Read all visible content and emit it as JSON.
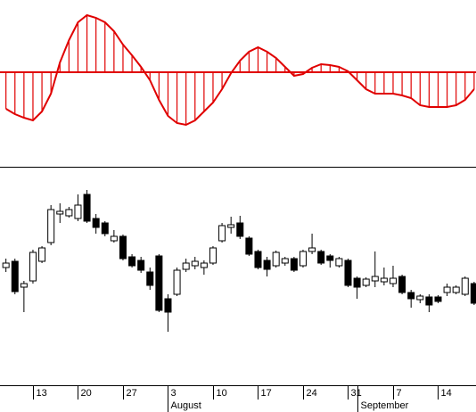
{
  "chart_data": [
    {
      "type": "oscillator",
      "color": "#e00000",
      "x": [
        -3,
        -2,
        -1,
        0,
        1,
        2,
        3,
        4,
        5,
        6,
        7,
        8,
        9,
        10,
        11,
        12,
        13,
        14,
        15,
        16,
        17,
        18,
        19,
        20,
        21,
        22,
        23,
        24,
        25,
        26,
        27,
        28,
        29,
        30,
        31,
        32,
        33,
        34,
        35,
        36,
        37,
        38,
        39,
        40,
        41,
        42,
        43,
        44,
        45,
        46,
        47,
        48,
        49
      ],
      "values": [
        -41,
        -47,
        -51,
        -54,
        -44,
        -24,
        11,
        36,
        56,
        64,
        61,
        56,
        46,
        31,
        19,
        6,
        -9,
        -31,
        -49,
        -57,
        -59,
        -54,
        -44,
        -34,
        -19,
        -1,
        13,
        23,
        28,
        23,
        16,
        6,
        -4,
        -2,
        5,
        9,
        8,
        6,
        1,
        -9,
        -19,
        -24,
        -24,
        -24,
        -26,
        -29,
        -37,
        -39,
        -39,
        -39,
        -37,
        -31,
        -19
      ],
      "xlim": [
        -3.66,
        49.21
      ],
      "ylim": [
        -106,
        81
      ]
    },
    {
      "type": "candlestick",
      "x": [
        -3,
        -2,
        -1,
        0,
        1,
        2,
        3,
        4,
        5,
        6,
        7,
        8,
        9,
        10,
        11,
        12,
        13,
        14,
        15,
        16,
        17,
        18,
        19,
        20,
        21,
        22,
        23,
        24,
        25,
        26,
        27,
        28,
        29,
        30,
        31,
        32,
        33,
        34,
        35,
        36,
        37,
        38,
        39,
        40,
        41,
        42,
        43,
        44,
        45,
        46,
        47,
        48,
        49
      ],
      "open": [
        66,
        69.5,
        55,
        58.5,
        69.5,
        80,
        96,
        95,
        93.5,
        107,
        93.5,
        91,
        81,
        83.5,
        72,
        70,
        63.5,
        72.5,
        48.5,
        51,
        65,
        67,
        66,
        68.5,
        81,
        88.5,
        91,
        82.5,
        75,
        70,
        67,
        68.5,
        71,
        67,
        75,
        75,
        72.5,
        67,
        70,
        60,
        56,
        58.5,
        58,
        57,
        61,
        52,
        48,
        49.5,
        49.5,
        52,
        52,
        51,
        57
      ],
      "high": [
        71,
        71,
        58.5,
        76,
        78,
        101,
        102,
        100,
        107,
        109.5,
        96,
        92,
        87,
        84.5,
        73.5,
        72,
        66,
        73.5,
        51,
        66,
        71,
        72,
        70,
        78,
        91,
        94.5,
        95,
        83.5,
        76,
        72,
        75.5,
        72,
        72,
        76,
        85,
        76,
        73.5,
        72,
        71,
        61,
        60.5,
        75,
        66,
        67,
        62,
        53.5,
        51,
        51,
        50.5,
        57,
        56,
        61,
        58
      ],
      "low": [
        63.5,
        51,
        41,
        57,
        68.5,
        78.5,
        91,
        94,
        92,
        91,
        85,
        83.5,
        80,
        70,
        66,
        63,
        53.5,
        41,
        30,
        50,
        63.5,
        65,
        62,
        67.5,
        80,
        85,
        82,
        72.5,
        65,
        61,
        66,
        67,
        63.5,
        66,
        73.5,
        67.5,
        66,
        66,
        55,
        48.5,
        55,
        55,
        56,
        55,
        51,
        43.5,
        46,
        41,
        46,
        50,
        51,
        50,
        45
      ],
      "close": [
        68.5,
        52.5,
        57,
        74.5,
        77,
        98.5,
        97.5,
        98.5,
        101,
        92,
        88.5,
        85,
        83.5,
        71,
        67,
        64.5,
        56,
        42,
        41,
        64.5,
        68.5,
        69.5,
        68.5,
        77,
        89.5,
        90,
        83.5,
        73.5,
        66,
        65,
        74.5,
        71,
        64.5,
        75,
        77,
        68.5,
        70,
        71,
        56,
        55,
        59.5,
        61,
        60,
        60,
        52,
        48.5,
        50,
        45,
        47,
        55,
        55,
        60,
        46
      ],
      "xlim": [
        -3.66,
        49.21
      ],
      "ylim": [
        0,
        121
      ],
      "xticks": [
        {
          "value": 0,
          "label": "13"
        },
        {
          "value": 5,
          "label": "20"
        },
        {
          "value": 10,
          "label": "27"
        },
        {
          "value": 15,
          "label": "3"
        },
        {
          "value": 20,
          "label": "10"
        },
        {
          "value": 25,
          "label": "17"
        },
        {
          "value": 30,
          "label": "24"
        },
        {
          "value": 35,
          "label": "31"
        },
        {
          "value": 40,
          "label": "7"
        },
        {
          "value": 45,
          "label": "14"
        }
      ],
      "months": [
        {
          "value": 15,
          "label": "August"
        },
        {
          "value": 36,
          "label": "September"
        }
      ]
    }
  ]
}
